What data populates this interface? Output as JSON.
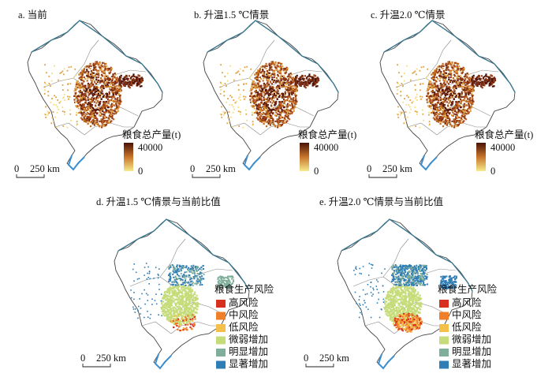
{
  "panels": [
    {
      "label": "a. 当前",
      "legend": {
        "title": "粮食总产量(t)",
        "max": "40000",
        "min": "0"
      },
      "scale": {
        "zero": "0",
        "distance": "250 km"
      }
    },
    {
      "label": "b. 升温1.5 ℃情景",
      "legend": {
        "title": "粮食总产量(t)",
        "max": "40000",
        "min": "0"
      },
      "scale": {
        "zero": "0",
        "distance": "250 km"
      }
    },
    {
      "label": "c. 升温2.0 ℃情景",
      "legend": {
        "title": "粮食总产量(t)",
        "max": "40000",
        "min": "0"
      },
      "scale": {
        "zero": "0",
        "distance": "250 km"
      }
    },
    {
      "label": "d. 升温1.5 ℃情景与当前比值",
      "legend": {
        "title": "粮食生产风险",
        "items": [
          {
            "label": "高风险",
            "color": "#d7301f"
          },
          {
            "label": "中风险",
            "color": "#f07f2a"
          },
          {
            "label": "低风险",
            "color": "#f5c04a"
          },
          {
            "label": "微弱增加",
            "color": "#c6dc7a"
          },
          {
            "label": "明显增加",
            "color": "#7fae9a"
          },
          {
            "label": "显著增加",
            "color": "#2f7db5"
          }
        ]
      },
      "scale": {
        "zero": "0",
        "distance": "250 km"
      }
    },
    {
      "label": "e. 升温2.0 ℃情景与当前比值",
      "legend": {
        "title": "粮食生产风险",
        "items": [
          {
            "label": "高风险",
            "color": "#d7301f"
          },
          {
            "label": "中风险",
            "color": "#f07f2a"
          },
          {
            "label": "低风险",
            "color": "#f5c04a"
          },
          {
            "label": "微弱增加",
            "color": "#c6dc7a"
          },
          {
            "label": "明显增加",
            "color": "#7fae9a"
          },
          {
            "label": "显著增加",
            "color": "#2f7db5"
          }
        ]
      },
      "scale": {
        "zero": "0",
        "distance": "250 km"
      }
    }
  ]
}
